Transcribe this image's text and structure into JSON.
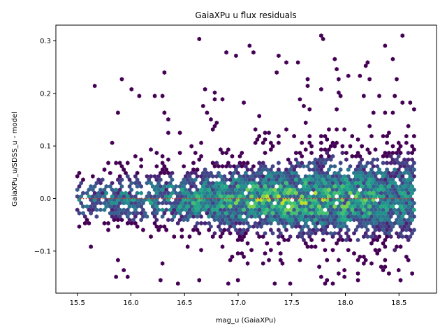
{
  "chart_data": {
    "type": "heatmap",
    "subtype": "hexbin",
    "title": "GaiaXPu u flux residuals",
    "xlabel": "mag_u (GaiaXPu)",
    "ylabel": "GaiaXPu_u/SDSS_u - model",
    "xlim": [
      15.3,
      18.85
    ],
    "ylim": [
      -0.18,
      0.33
    ],
    "xticks": [
      15.5,
      16.0,
      16.5,
      17.0,
      17.5,
      18.0,
      18.5
    ],
    "xtick_labels": [
      "15.5",
      "16.0",
      "16.5",
      "17.0",
      "17.5",
      "18.0",
      "18.5"
    ],
    "yticks": [
      -0.1,
      0.0,
      0.1,
      0.2,
      0.3
    ],
    "ytick_labels": [
      "−0.1",
      "0.0",
      "0.1",
      "0.2",
      "0.3"
    ],
    "colormap": "viridis",
    "grid": false,
    "reference_line": {
      "y": 0.0,
      "style": "dotted",
      "color": "#d62728"
    },
    "density_profile": {
      "x_range": [
        15.5,
        18.65
      ],
      "y_center": 0.0,
      "notes_x_peak": 17.5
    }
  }
}
